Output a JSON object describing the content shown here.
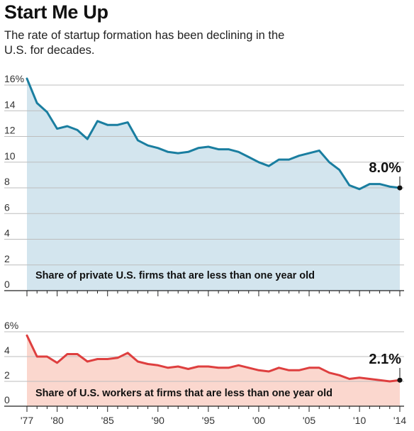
{
  "header": {
    "title": "Start Me Up",
    "subtitle": "The rate of startup formation has been declining in the U.S. for decades."
  },
  "colors": {
    "top_line": "#1a7ea0",
    "top_fill": "#d3e5ee",
    "bottom_line": "#de3f3f",
    "bottom_fill": "#fbd7ce",
    "grid": "#bdbdbd",
    "marker": "#111111"
  },
  "chart_data": [
    {
      "type": "area",
      "caption": "Share of private U.S. firms that are less than one year old",
      "x_ticks": [
        "'77",
        "'80",
        "'85",
        "'90",
        "'95",
        "'00",
        "'05",
        "'10",
        "'14"
      ],
      "x_tick_years": [
        1977,
        1980,
        1985,
        1990,
        1995,
        2000,
        2005,
        2010,
        2014
      ],
      "y_ticks": [
        "16%",
        "14",
        "12",
        "10",
        "8",
        "6",
        "4",
        "2",
        "0"
      ],
      "ylim": [
        0,
        16
      ],
      "end_label": "8.0%",
      "x": [
        1977,
        1978,
        1979,
        1980,
        1981,
        1982,
        1983,
        1984,
        1985,
        1986,
        1987,
        1988,
        1989,
        1990,
        1991,
        1992,
        1993,
        1994,
        1995,
        1996,
        1997,
        1998,
        1999,
        2000,
        2001,
        2002,
        2003,
        2004,
        2005,
        2006,
        2007,
        2008,
        2009,
        2010,
        2011,
        2012,
        2013,
        2014
      ],
      "values": [
        16.5,
        14.6,
        13.9,
        12.6,
        12.8,
        12.5,
        11.8,
        13.2,
        12.9,
        12.9,
        13.1,
        11.7,
        11.3,
        11.1,
        10.8,
        10.7,
        10.8,
        11.1,
        11.2,
        11.0,
        11.0,
        10.8,
        10.4,
        10.0,
        9.7,
        10.2,
        10.2,
        10.5,
        10.7,
        10.9,
        10.0,
        9.4,
        8.2,
        7.9,
        8.3,
        8.3,
        8.1,
        8.0
      ]
    },
    {
      "type": "area",
      "caption": "Share of U.S. workers at firms that are less than one year old",
      "x_ticks": [
        "'77",
        "'80",
        "'85",
        "'90",
        "'95",
        "'00",
        "'05",
        "'10",
        "'14"
      ],
      "x_tick_years": [
        1977,
        1980,
        1985,
        1990,
        1995,
        2000,
        2005,
        2010,
        2014
      ],
      "y_ticks": [
        "6%",
        "4",
        "2",
        "0"
      ],
      "ylim": [
        0,
        6
      ],
      "end_label": "2.1%",
      "x": [
        1977,
        1978,
        1979,
        1980,
        1981,
        1982,
        1983,
        1984,
        1985,
        1986,
        1987,
        1988,
        1989,
        1990,
        1991,
        1992,
        1993,
        1994,
        1995,
        1996,
        1997,
        1998,
        1999,
        2000,
        2001,
        2002,
        2003,
        2004,
        2005,
        2006,
        2007,
        2008,
        2009,
        2010,
        2011,
        2012,
        2013,
        2014
      ],
      "values": [
        5.7,
        4.0,
        4.0,
        3.5,
        4.2,
        4.2,
        3.6,
        3.8,
        3.8,
        3.9,
        4.3,
        3.6,
        3.4,
        3.3,
        3.1,
        3.2,
        3.0,
        3.2,
        3.2,
        3.1,
        3.1,
        3.3,
        3.1,
        2.9,
        2.8,
        3.1,
        2.9,
        2.9,
        3.1,
        3.1,
        2.7,
        2.5,
        2.2,
        2.3,
        2.2,
        2.1,
        2.0,
        2.1
      ]
    }
  ]
}
